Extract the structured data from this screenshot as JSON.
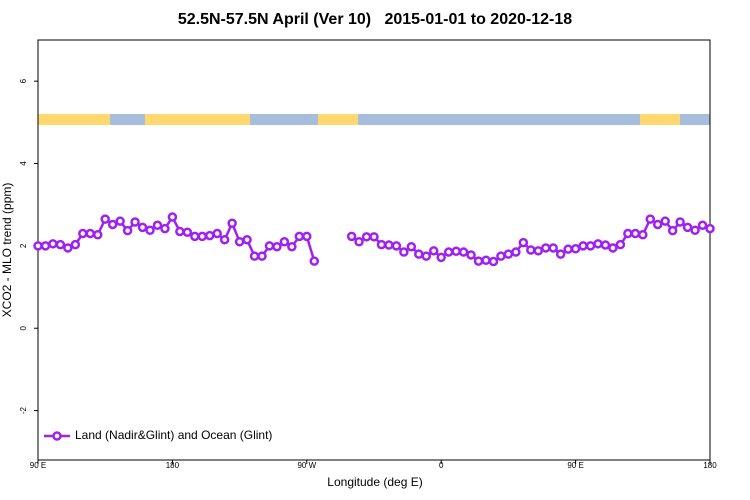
{
  "chart_data": {
    "type": "line",
    "title": "52.5N-57.5N April (Ver 10)   2015-01-01 to 2020-12-18",
    "x_label": "Longitude (deg E)",
    "y_label": "XCO2 - MLO trend (ppm)",
    "xlim": [
      90,
      540
    ],
    "ylim": [
      -3.2,
      7.0
    ],
    "xticks": [
      {
        "value": 90,
        "label": "90 E"
      },
      180,
      {
        "value": 270,
        "label": "90 W"
      },
      {
        "value": 360,
        "label": "0"
      },
      {
        "value": 450,
        "label": "90 E"
      },
      {
        "value": 540,
        "label": "180"
      }
    ],
    "yticks": [
      -2,
      0,
      2,
      4,
      6
    ],
    "legend": "bottom-left",
    "x": [
      90,
      95,
      100,
      105,
      110,
      115,
      120,
      125,
      130,
      135,
      140,
      145,
      150,
      155,
      160,
      165,
      170,
      175,
      180,
      185,
      190,
      195,
      200,
      205,
      210,
      215,
      220,
      225,
      230,
      235,
      240,
      245,
      250,
      255,
      260,
      265,
      270,
      275,
      280,
      285,
      290,
      295,
      300,
      305,
      310,
      315,
      320,
      325,
      330,
      335,
      340,
      345,
      350,
      355,
      360,
      365,
      370,
      375,
      380,
      385,
      390,
      395,
      400,
      405,
      410,
      415,
      420,
      425,
      430,
      435,
      440,
      445,
      450,
      455,
      460,
      465,
      470,
      475,
      480,
      485,
      490,
      495,
      500,
      505,
      510,
      515,
      520,
      525,
      530,
      535,
      540
    ],
    "series": [
      {
        "name": "Land (Nadir&Glint) and Ocean (Glint)",
        "color": "#a020f0",
        "values": [
          2.0,
          2.0,
          2.05,
          2.03,
          1.95,
          2.03,
          2.3,
          2.3,
          2.27,
          2.65,
          2.52,
          2.6,
          2.37,
          2.58,
          2.45,
          2.38,
          2.5,
          2.42,
          2.7,
          2.35,
          2.33,
          2.23,
          2.23,
          2.25,
          2.3,
          2.15,
          2.55,
          2.1,
          2.15,
          1.75,
          1.75,
          2.0,
          1.98,
          2.1,
          1.98,
          2.23,
          2.23,
          1.63,
          null,
          null,
          null,
          null,
          2.23,
          2.1,
          2.22,
          2.22,
          2.03,
          2.02,
          2.0,
          1.85,
          1.98,
          1.8,
          1.75,
          1.88,
          1.72,
          1.85,
          1.87,
          1.85,
          1.78,
          1.63,
          1.65,
          1.62,
          1.75,
          1.8,
          1.85,
          2.08,
          1.9,
          1.88,
          1.95,
          1.95,
          1.8,
          1.92,
          1.93,
          2.0,
          2.0,
          2.05,
          2.02,
          1.95,
          2.03,
          2.3,
          2.3,
          2.27,
          2.65,
          2.52,
          2.6,
          2.37,
          2.58,
          2.45,
          2.38,
          2.5,
          2.42
        ]
      }
    ]
  }
}
